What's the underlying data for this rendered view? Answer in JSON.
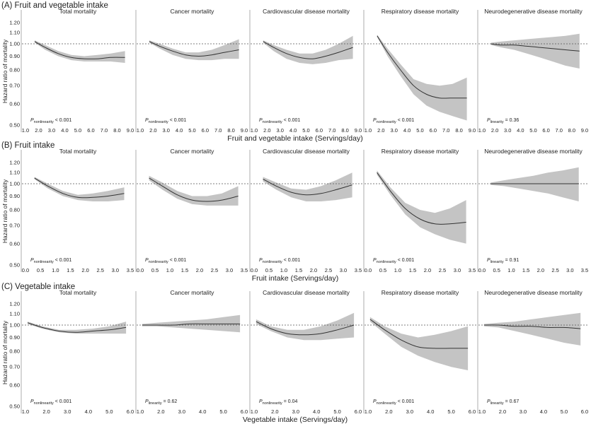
{
  "figure": {
    "ylabel": "Hazard ratio of mortality",
    "y_ticks": [
      "0.50",
      "0.60",
      "0.70",
      "0.80",
      "0.90",
      "1.00",
      "1.10",
      "1.20"
    ],
    "panel_titles": [
      "Total mortality",
      "Cancer mortality",
      "Cardiovascular disease mortality",
      "Respiratory disease mortality",
      "Neurodegenerative disease mortality"
    ]
  },
  "chart_data": [
    {
      "type": "line",
      "title": "(A) Fruit and vegetable intake",
      "xlabel": "Fruit and vegetable intake (Servings/day)",
      "ylabel": "Hazard ratio of mortality",
      "xlim": [
        1.0,
        9.0
      ],
      "x_ticks": [
        "1.0",
        "2.0",
        "3.0",
        "4.0",
        "5.0",
        "6.0",
        "7.0",
        "8.0",
        "9.0"
      ],
      "ylim": [
        0.5,
        1.25
      ],
      "y_scale": "log",
      "reference_line": 1.0,
      "panels": [
        {
          "title": "Total mortality",
          "p_label": "nonlinearity",
          "p_text": "< 0.001",
          "x": [
            1.7,
            2.5,
            3.5,
            4.5,
            5.5,
            6.5,
            7.5,
            8.6
          ],
          "hr": [
            1.02,
            0.97,
            0.92,
            0.89,
            0.88,
            0.88,
            0.89,
            0.89
          ],
          "lower": [
            1.01,
            0.95,
            0.9,
            0.87,
            0.86,
            0.86,
            0.86,
            0.85
          ],
          "upper": [
            1.03,
            0.99,
            0.94,
            0.91,
            0.9,
            0.91,
            0.92,
            0.94
          ]
        },
        {
          "title": "Cancer mortality",
          "p_label": "nonlinearity",
          "p_text": "< 0.001",
          "x": [
            1.7,
            2.5,
            3.5,
            4.5,
            5.5,
            6.5,
            7.5,
            8.6
          ],
          "hr": [
            1.02,
            0.98,
            0.94,
            0.91,
            0.9,
            0.91,
            0.93,
            0.95
          ],
          "lower": [
            1.01,
            0.96,
            0.91,
            0.88,
            0.87,
            0.87,
            0.88,
            0.88
          ],
          "upper": [
            1.03,
            1.0,
            0.96,
            0.93,
            0.93,
            0.95,
            0.99,
            1.04
          ]
        },
        {
          "title": "Cardiovascular disease mortality",
          "p_label": "nonlinearity",
          "p_text": "< 0.001",
          "x": [
            1.7,
            2.5,
            3.5,
            4.5,
            5.5,
            6.5,
            7.5,
            8.6
          ],
          "hr": [
            1.02,
            0.97,
            0.92,
            0.89,
            0.88,
            0.9,
            0.93,
            0.97
          ],
          "lower": [
            1.01,
            0.94,
            0.88,
            0.85,
            0.84,
            0.85,
            0.87,
            0.88
          ],
          "upper": [
            1.03,
            0.99,
            0.95,
            0.92,
            0.92,
            0.95,
            1.0,
            1.07
          ]
        },
        {
          "title": "Respiratory disease mortality",
          "p_label": "nonlinearity",
          "p_text": "< 0.001",
          "x": [
            1.7,
            2.5,
            3.5,
            4.5,
            5.5,
            6.5,
            7.5,
            8.6
          ],
          "hr": [
            1.07,
            0.93,
            0.8,
            0.7,
            0.65,
            0.63,
            0.63,
            0.63
          ],
          "lower": [
            1.06,
            0.9,
            0.76,
            0.65,
            0.59,
            0.56,
            0.54,
            0.52
          ],
          "upper": [
            1.08,
            0.96,
            0.84,
            0.74,
            0.71,
            0.7,
            0.71,
            0.75
          ]
        },
        {
          "title": "Neurodegenerative disease mortality",
          "p_label": "linearity",
          "p_text": "= 0.36",
          "x": [
            1.7,
            2.5,
            3.5,
            4.5,
            5.5,
            6.5,
            7.5,
            8.6
          ],
          "hr": [
            1.0,
            0.99,
            0.99,
            0.98,
            0.97,
            0.96,
            0.95,
            0.94
          ],
          "lower": [
            0.99,
            0.97,
            0.95,
            0.92,
            0.89,
            0.86,
            0.83,
            0.81
          ],
          "upper": [
            1.01,
            1.02,
            1.03,
            1.04,
            1.05,
            1.06,
            1.07,
            1.09
          ]
        }
      ]
    },
    {
      "type": "line",
      "title": "(B) Fruit intake",
      "xlabel": "Fruit intake (Servings/day)",
      "ylabel": "Hazard ratio of mortality",
      "xlim": [
        0.0,
        3.5
      ],
      "x_ticks": [
        "0.0",
        "0.5",
        "1.0",
        "1.5",
        "2.0",
        "2.5",
        "3.0",
        "3.5"
      ],
      "ylim": [
        0.5,
        1.25
      ],
      "y_scale": "log",
      "reference_line": 1.0,
      "panels": [
        {
          "title": "Total mortality",
          "p_label": "nonlinearity",
          "p_text": "< 0.001",
          "x": [
            0.3,
            0.75,
            1.25,
            1.75,
            2.25,
            2.75,
            3.3
          ],
          "hr": [
            1.05,
            0.98,
            0.92,
            0.89,
            0.89,
            0.9,
            0.92
          ],
          "lower": [
            1.04,
            0.96,
            0.9,
            0.87,
            0.86,
            0.86,
            0.87
          ],
          "upper": [
            1.06,
            1.0,
            0.94,
            0.91,
            0.92,
            0.94,
            0.97
          ]
        },
        {
          "title": "Cancer mortality",
          "p_label": "nonlinearity",
          "p_text": "< 0.001",
          "x": [
            0.3,
            0.75,
            1.25,
            1.75,
            2.25,
            2.75,
            3.3
          ],
          "hr": [
            1.05,
            0.98,
            0.91,
            0.87,
            0.86,
            0.87,
            0.9
          ],
          "lower": [
            1.03,
            0.95,
            0.88,
            0.84,
            0.83,
            0.83,
            0.83
          ],
          "upper": [
            1.07,
            1.01,
            0.94,
            0.9,
            0.9,
            0.92,
            0.98
          ]
        },
        {
          "title": "Cardiovascular disease mortality",
          "p_label": "nonlinearity",
          "p_text": "< 0.001",
          "x": [
            0.3,
            0.75,
            1.25,
            1.75,
            2.25,
            2.75,
            3.3
          ],
          "hr": [
            1.04,
            0.98,
            0.93,
            0.91,
            0.92,
            0.95,
            0.99
          ],
          "lower": [
            1.02,
            0.95,
            0.89,
            0.86,
            0.86,
            0.87,
            0.89
          ],
          "upper": [
            1.06,
            1.01,
            0.96,
            0.95,
            0.98,
            1.03,
            1.1
          ]
        },
        {
          "title": "Respiratory disease mortality",
          "p_label": "nonlinearity",
          "p_text": "< 0.001",
          "x": [
            0.3,
            0.75,
            1.25,
            1.75,
            2.25,
            2.75,
            3.3
          ],
          "hr": [
            1.1,
            0.94,
            0.81,
            0.74,
            0.71,
            0.71,
            0.72
          ],
          "lower": [
            1.08,
            0.91,
            0.77,
            0.69,
            0.65,
            0.62,
            0.6
          ],
          "upper": [
            1.12,
            0.97,
            0.85,
            0.8,
            0.78,
            0.81,
            0.87
          ]
        },
        {
          "title": "Neurodegenerative disease mortality",
          "p_label": "linearity",
          "p_text": "= 0.91",
          "x": [
            0.3,
            0.75,
            1.25,
            1.75,
            2.25,
            2.75,
            3.3
          ],
          "hr": [
            1.0,
            1.0,
            1.0,
            1.0,
            1.0,
            1.0,
            1.0
          ],
          "lower": [
            0.99,
            0.98,
            0.96,
            0.94,
            0.92,
            0.89,
            0.86
          ],
          "upper": [
            1.01,
            1.03,
            1.05,
            1.07,
            1.1,
            1.12,
            1.15
          ]
        }
      ]
    },
    {
      "type": "line",
      "title": "(C) Vegetable intake",
      "xlabel": "Vegetable intake (Servings/day)",
      "ylabel": "Hazard ratio of mortality",
      "xlim": [
        1.0,
        6.0
      ],
      "x_ticks": [
        "1.0",
        "2.0",
        "3.0",
        "4.0",
        "5.0",
        "6.0"
      ],
      "ylim": [
        0.5,
        1.25
      ],
      "y_scale": "log",
      "reference_line": 1.0,
      "panels": [
        {
          "title": "Total mortality",
          "p_label": "nonlinearity",
          "p_text": "< 0.001",
          "x": [
            1.1,
            1.8,
            2.6,
            3.4,
            4.2,
            5.0,
            5.8
          ],
          "hr": [
            1.02,
            0.98,
            0.95,
            0.94,
            0.95,
            0.96,
            0.98
          ],
          "lower": [
            1.01,
            0.97,
            0.94,
            0.93,
            0.93,
            0.93,
            0.93
          ],
          "upper": [
            1.03,
            0.99,
            0.96,
            0.96,
            0.97,
            0.99,
            1.03
          ]
        },
        {
          "title": "Cancer mortality",
          "p_label": "linearity",
          "p_text": "= 0.62",
          "x": [
            1.1,
            1.8,
            2.6,
            3.4,
            4.2,
            5.0,
            5.8
          ],
          "hr": [
            1.0,
            1.0,
            1.0,
            1.01,
            1.01,
            1.01,
            1.01
          ],
          "lower": [
            0.99,
            0.99,
            0.98,
            0.97,
            0.96,
            0.95,
            0.94
          ],
          "upper": [
            1.01,
            1.02,
            1.03,
            1.04,
            1.05,
            1.07,
            1.09
          ]
        },
        {
          "title": "Cardiovascular disease mortality",
          "p_label": "nonlinearity",
          "p_text": "= 0.04",
          "x": [
            1.1,
            1.8,
            2.6,
            3.4,
            4.2,
            5.0,
            5.8
          ],
          "hr": [
            1.03,
            0.97,
            0.93,
            0.92,
            0.93,
            0.96,
            1.0
          ],
          "lower": [
            1.01,
            0.95,
            0.9,
            0.88,
            0.88,
            0.89,
            0.9
          ],
          "upper": [
            1.05,
            0.99,
            0.96,
            0.96,
            0.99,
            1.04,
            1.11
          ]
        },
        {
          "title": "Respiratory disease mortality",
          "p_label": "nonlinearity",
          "p_text": "< 0.001",
          "x": [
            1.1,
            1.8,
            2.6,
            3.4,
            4.2,
            5.0,
            5.8
          ],
          "hr": [
            1.05,
            0.96,
            0.88,
            0.83,
            0.82,
            0.82,
            0.82
          ],
          "lower": [
            1.03,
            0.93,
            0.83,
            0.77,
            0.73,
            0.7,
            0.68
          ],
          "upper": [
            1.07,
            0.99,
            0.93,
            0.9,
            0.92,
            0.95,
            0.99
          ]
        },
        {
          "title": "Neurodegenerative disease mortality",
          "p_label": "linearity",
          "p_text": "= 0.67",
          "x": [
            1.1,
            1.8,
            2.6,
            3.4,
            4.2,
            5.0,
            5.8
          ],
          "hr": [
            1.0,
            1.0,
            0.99,
            0.99,
            0.98,
            0.98,
            0.97
          ],
          "lower": [
            0.99,
            0.98,
            0.95,
            0.92,
            0.89,
            0.86,
            0.84
          ],
          "upper": [
            1.01,
            1.02,
            1.03,
            1.05,
            1.07,
            1.09,
            1.11
          ]
        }
      ]
    }
  ]
}
